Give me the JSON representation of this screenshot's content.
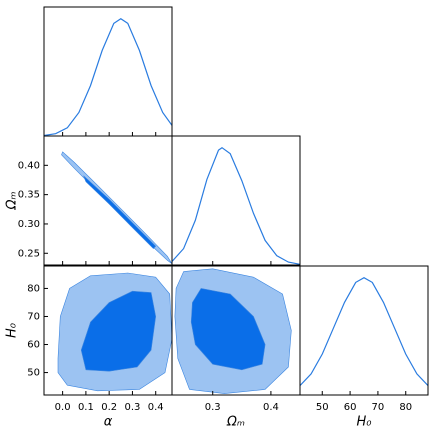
{
  "chart_data": [
    {
      "type": "line",
      "color": "#2a7ce0",
      "xlim": [
        -0.08,
        0.47
      ],
      "ylim": [
        0,
        1.1
      ],
      "xticks": [
        {
          "value": 0,
          "label": "0.0"
        },
        0.1,
        0.2,
        0.3,
        0.4
      ],
      "x": [
        -0.08,
        -0.03,
        0.02,
        0.07,
        0.12,
        0.17,
        0.22,
        0.25,
        0.28,
        0.33,
        0.38,
        0.43,
        0.47
      ],
      "values": [
        0.004,
        0.02,
        0.07,
        0.2,
        0.43,
        0.73,
        0.96,
        1,
        0.96,
        0.73,
        0.43,
        0.2,
        0.09
      ]
    },
    {
      "type": "contour",
      "xlim": [
        -0.08,
        0.47
      ],
      "ylim": [
        0.23,
        0.45
      ],
      "xticks": [
        {
          "value": 0,
          "label": "0.0"
        },
        0.1,
        0.2,
        0.3,
        0.4
      ],
      "yticks": [
        0.25,
        {
          "value": 0.3,
          "label": "0.30"
        },
        0.35,
        {
          "value": 0.4,
          "label": "0.40"
        }
      ],
      "ylabel": "Ωₘ",
      "series": [
        {
          "color": "#9cc3f2",
          "x": [
            0.0,
            0.05,
            0.15,
            0.25,
            0.35,
            0.45,
            0.47,
            0.45,
            0.35,
            0.25,
            0.15,
            0.05,
            -0.005
          ],
          "y": [
            0.423,
            0.405,
            0.366,
            0.326,
            0.286,
            0.245,
            0.232,
            0.238,
            0.275,
            0.315,
            0.355,
            0.395,
            0.418
          ]
        },
        {
          "color": "#0a6ee8",
          "x": [
            0.09,
            0.2,
            0.3,
            0.4,
            0.39,
            0.3,
            0.2,
            0.1
          ],
          "y": [
            0.382,
            0.342,
            0.302,
            0.262,
            0.258,
            0.294,
            0.334,
            0.372
          ]
        }
      ]
    },
    {
      "type": "line",
      "color": "#2a7ce0",
      "xlim": [
        0.23,
        0.45
      ],
      "ylim": [
        0,
        1.1
      ],
      "xticks": [
        {
          "value": 0.3,
          "label": "0.3"
        },
        {
          "value": 0.4,
          "label": "0.4"
        }
      ],
      "x": [
        0.23,
        0.25,
        0.27,
        0.29,
        0.31,
        0.316,
        0.33,
        0.35,
        0.37,
        0.39,
        0.41,
        0.43,
        0.45
      ],
      "values": [
        0.03,
        0.14,
        0.38,
        0.73,
        0.98,
        1,
        0.95,
        0.72,
        0.44,
        0.21,
        0.08,
        0.025,
        0.006
      ]
    },
    {
      "type": "contour",
      "xlim": [
        -0.08,
        0.47
      ],
      "ylim": [
        42,
        88
      ],
      "xticks": [
        {
          "value": 0,
          "label": "0.0"
        },
        0.1,
        0.2,
        0.3,
        0.4
      ],
      "yticks": [
        50,
        60,
        70,
        80
      ],
      "xlabel": "α",
      "ylabel": "H₀",
      "series": [
        {
          "color": "#9cc3f2",
          "x": [
            -0.02,
            -0.01,
            0.03,
            0.12,
            0.28,
            0.4,
            0.46,
            0.47,
            0.44,
            0.33,
            0.15,
            0.02,
            -0.02
          ],
          "y": [
            55,
            70,
            80,
            84.5,
            85.5,
            84,
            78,
            62,
            50,
            44,
            43.5,
            45.5,
            50
          ]
        },
        {
          "color": "#0a6ee8",
          "x": [
            0.08,
            0.12,
            0.2,
            0.3,
            0.38,
            0.4,
            0.38,
            0.32,
            0.2,
            0.1
          ],
          "y": [
            58,
            68,
            75,
            79,
            78.5,
            70,
            58,
            52,
            50.5,
            51
          ]
        }
      ]
    },
    {
      "type": "contour",
      "xlim": [
        0.23,
        0.45
      ],
      "ylim": [
        42,
        88
      ],
      "xticks": [
        {
          "value": 0.3,
          "label": "0.3"
        },
        {
          "value": 0.4,
          "label": "0.4"
        }
      ],
      "xlabel": "Ωₘ",
      "series": [
        {
          "color": "#9cc3f2",
          "x": [
            0.237,
            0.25,
            0.3,
            0.37,
            0.42,
            0.435,
            0.43,
            0.39,
            0.32,
            0.26,
            0.24,
            0.235
          ],
          "y": [
            80,
            86,
            87,
            84,
            78,
            65,
            52,
            44,
            42.5,
            44,
            55,
            70
          ]
        },
        {
          "color": "#0a6ee8",
          "x": [
            0.265,
            0.28,
            0.33,
            0.37,
            0.39,
            0.385,
            0.35,
            0.3,
            0.27,
            0.263
          ],
          "y": [
            75,
            80,
            78,
            70,
            60,
            53,
            51,
            53,
            60,
            68
          ]
        }
      ]
    },
    {
      "type": "line",
      "color": "#2a7ce0",
      "xlim": [
        42,
        88
      ],
      "ylim": [
        0,
        1.1
      ],
      "xticks": [
        50,
        60,
        70,
        80
      ],
      "xlabel": "H₀",
      "x": [
        42,
        46,
        50,
        54,
        58,
        62,
        65,
        68,
        72,
        76,
        80,
        84,
        88
      ],
      "values": [
        0.08,
        0.18,
        0.35,
        0.57,
        0.79,
        0.96,
        1,
        0.96,
        0.79,
        0.57,
        0.35,
        0.18,
        0.08
      ]
    }
  ]
}
